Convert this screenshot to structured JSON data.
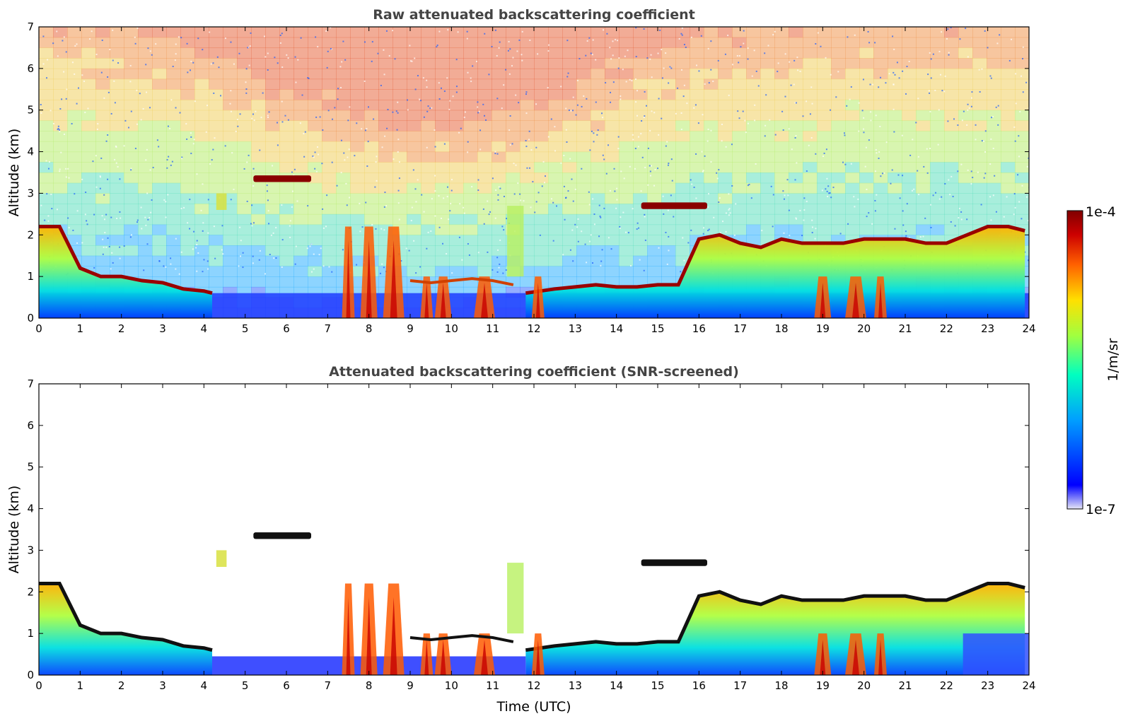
{
  "chart_data": [
    {
      "type": "heatmap",
      "title": "Raw attenuated backscattering coefficient",
      "xlabel": "",
      "ylabel": "Altitude (km)",
      "xlim": [
        0,
        24
      ],
      "ylim": [
        0,
        7
      ],
      "x_ticks": [
        "0",
        "1",
        "2",
        "3",
        "4",
        "5",
        "6",
        "7",
        "8",
        "9",
        "10",
        "11",
        "12",
        "13",
        "14",
        "15",
        "16",
        "17",
        "18",
        "19",
        "20",
        "21",
        "22",
        "23",
        "24"
      ],
      "y_ticks": [
        "0",
        "1",
        "2",
        "3",
        "4",
        "5",
        "6",
        "7"
      ],
      "features": {
        "boundary_layer_top": {
          "x": [
            0,
            0.5,
            1,
            1.5,
            2,
            2.5,
            3,
            3.5,
            4,
            4.2,
            11.8,
            12.5,
            13,
            13.5,
            14,
            14.5,
            15,
            15.5,
            16,
            16.5,
            17,
            17.5,
            18,
            18.5,
            19,
            19.5,
            20,
            20.5,
            21,
            21.5,
            22,
            22.5,
            23,
            23.5,
            23.9
          ],
          "y": [
            2.2,
            2.2,
            1.2,
            1.0,
            1.0,
            0.9,
            0.85,
            0.7,
            0.65,
            0.6,
            0.6,
            0.7,
            0.75,
            0.8,
            0.75,
            0.75,
            0.8,
            0.8,
            1.9,
            2.0,
            1.8,
            1.7,
            1.9,
            1.8,
            1.8,
            1.8,
            1.9,
            1.9,
            1.9,
            1.8,
            1.8,
            2.0,
            2.2,
            2.2,
            2.1
          ]
        },
        "elevated_layers": [
          {
            "x0": 5.2,
            "x1": 6.6,
            "y": 3.35
          },
          {
            "x0": 14.6,
            "x1": 16.2,
            "y": 2.7
          }
        ],
        "precipitation_streaks": [
          7.5,
          8.0,
          8.6,
          9.4,
          9.8,
          10.8,
          12.1,
          19.0,
          19.8,
          20.4
        ]
      }
    },
    {
      "type": "heatmap",
      "title": "Attenuated backscattering coefficient (SNR-screened)",
      "xlabel": "Time (UTC)",
      "ylabel": "Altitude (km)",
      "xlim": [
        0,
        24
      ],
      "ylim": [
        0,
        7
      ],
      "x_ticks": [
        "0",
        "1",
        "2",
        "3",
        "4",
        "5",
        "6",
        "7",
        "8",
        "9",
        "10",
        "11",
        "12",
        "13",
        "14",
        "15",
        "16",
        "17",
        "18",
        "19",
        "20",
        "21",
        "22",
        "23",
        "24"
      ],
      "y_ticks": [
        "0",
        "1",
        "2",
        "3",
        "4",
        "5",
        "6",
        "7"
      ],
      "features": {
        "boundary_layer_top": {
          "x": [
            0,
            0.5,
            1,
            1.5,
            2,
            2.5,
            3,
            3.5,
            4,
            4.2,
            11.8,
            12.5,
            13,
            13.5,
            14,
            14.5,
            15,
            15.5,
            16,
            16.5,
            17,
            17.5,
            18,
            18.5,
            19,
            19.5,
            20,
            20.5,
            21,
            21.5,
            22,
            22.5,
            23,
            23.5,
            23.9
          ],
          "y": [
            2.2,
            2.2,
            1.2,
            1.0,
            1.0,
            0.9,
            0.85,
            0.7,
            0.65,
            0.6,
            0.6,
            0.7,
            0.75,
            0.8,
            0.75,
            0.75,
            0.8,
            0.8,
            1.9,
            2.0,
            1.8,
            1.7,
            1.9,
            1.8,
            1.8,
            1.8,
            1.9,
            1.9,
            1.9,
            1.8,
            1.8,
            2.0,
            2.2,
            2.2,
            2.1
          ]
        },
        "elevated_layers": [
          {
            "x0": 5.2,
            "x1": 6.6,
            "y": 3.35
          },
          {
            "x0": 14.6,
            "x1": 16.2,
            "y": 2.7
          }
        ],
        "screened_out": "weak signal above the boundary layer removed (white)"
      }
    }
  ],
  "colorbar": {
    "label": "1/m/sr",
    "max_label": "1e-4",
    "min_label": "1e-7",
    "colormap": "jet",
    "stops": [
      "#e6e6f5",
      "#0000ff",
      "#00a0ff",
      "#00ffc0",
      "#a0ff40",
      "#ffe000",
      "#ff6000",
      "#cc0000",
      "#800000"
    ]
  }
}
